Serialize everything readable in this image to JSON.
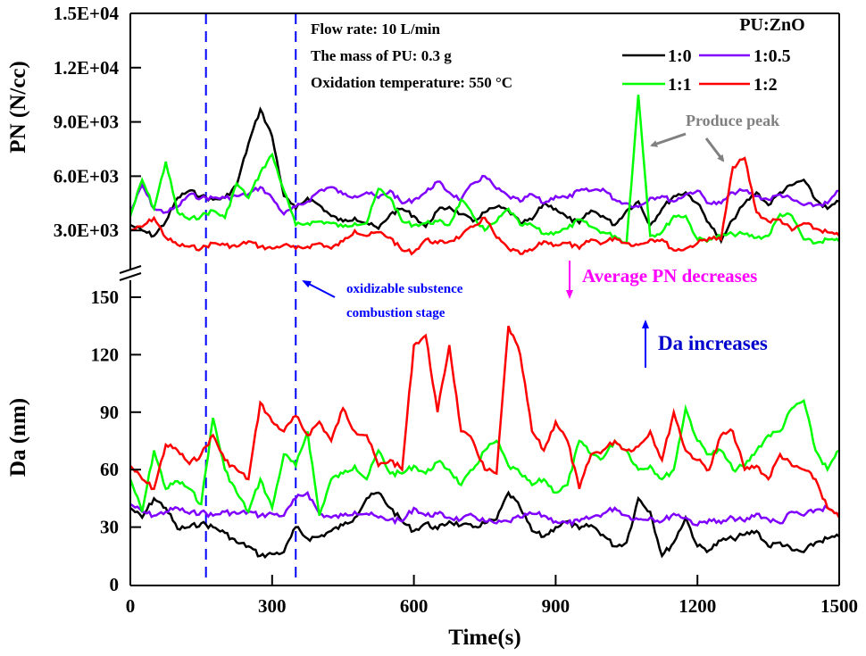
{
  "chart_data": {
    "type": "line",
    "title": "",
    "xlabel": "Time(s)",
    "xlim": [
      0,
      1500
    ],
    "xticks": [
      "0",
      "300",
      "600",
      "900",
      "1200",
      "1500"
    ],
    "xtick_values": [
      0,
      300,
      600,
      900,
      1200,
      1500
    ],
    "panels": [
      {
        "name": "PN",
        "ylabel": "PN (N/cc)",
        "ylim": [
          0,
          15000
        ],
        "yticks": [
          "3.0E+03",
          "6.0E+03",
          "9.0E+03",
          "1.2E+04",
          "1.5E+04"
        ],
        "ytick_values": [
          3000,
          6000,
          9000,
          12000,
          15000
        ]
      },
      {
        "name": "Da",
        "ylabel": "Da (nm)",
        "ylim": [
          0,
          160
        ],
        "yticks": [
          "0",
          "30",
          "60",
          "90",
          "120",
          "150"
        ],
        "ytick_values": [
          0,
          30,
          60,
          90,
          120,
          150
        ]
      }
    ],
    "legend": {
      "title": "PU:ZnO",
      "placement": "top-right"
    },
    "x": [
      0,
      25,
      50,
      75,
      100,
      125,
      150,
      175,
      200,
      225,
      250,
      275,
      300,
      325,
      350,
      375,
      400,
      425,
      450,
      475,
      500,
      525,
      550,
      575,
      600,
      625,
      650,
      675,
      700,
      725,
      750,
      775,
      800,
      825,
      850,
      875,
      900,
      925,
      950,
      975,
      1000,
      1025,
      1050,
      1075,
      1100,
      1125,
      1150,
      1175,
      1200,
      1225,
      1250,
      1275,
      1300,
      1325,
      1350,
      1375,
      1400,
      1425,
      1450,
      1475,
      1500
    ],
    "series": [
      {
        "name": "1:0",
        "color": "#000000",
        "PN": [
          3300,
          3000,
          2700,
          3500,
          4800,
          5200,
          4900,
          4700,
          4800,
          5500,
          7800,
          9700,
          8200,
          4900,
          4200,
          4800,
          4400,
          3800,
          3500,
          3700,
          3400,
          3100,
          3900,
          4200,
          3800,
          3200,
          4100,
          4300,
          3900,
          3500,
          4000,
          4300,
          4100,
          3400,
          3600,
          4500,
          4200,
          3700,
          3400,
          4100,
          3800,
          3300,
          4100,
          4600,
          3300,
          4200,
          4900,
          5100,
          4500,
          3400,
          2400,
          3600,
          4500,
          5100,
          4400,
          5100,
          5500,
          5800,
          4700,
          4200,
          4600
        ],
        "Da": [
          40,
          35,
          45,
          40,
          29,
          30,
          32,
          30,
          27,
          22,
          20,
          15,
          16,
          17,
          30,
          24,
          25,
          28,
          31,
          35,
          45,
          48,
          40,
          33,
          28,
          32,
          29,
          33,
          31,
          30,
          32,
          34,
          48,
          40,
          28,
          25,
          30,
          33,
          29,
          31,
          26,
          20,
          22,
          45,
          38,
          15,
          22,
          35,
          20,
          18,
          23,
          24,
          26,
          28,
          20,
          22,
          18,
          17,
          22,
          24,
          25
        ]
      },
      {
        "name": "1:0.5",
        "color": "#8000ff",
        "PN": [
          4000,
          5500,
          4200,
          4000,
          4300,
          5000,
          4800,
          4800,
          4800,
          4900,
          5000,
          5400,
          4800,
          3900,
          4300,
          4600,
          5200,
          5400,
          5000,
          4900,
          5100,
          4800,
          5200,
          4500,
          4700,
          5100,
          5700,
          5100,
          4700,
          5600,
          6000,
          5300,
          4900,
          4600,
          5000,
          4500,
          4900,
          4800,
          5200,
          5200,
          5300,
          4700,
          4500,
          4300,
          4800,
          4900,
          4600,
          5000,
          5200,
          4500,
          4500,
          5100,
          5200,
          4900,
          4700,
          5000,
          4700,
          4400,
          4400,
          4500,
          5200
        ],
        "Da": [
          42,
          38,
          36,
          38,
          40,
          37,
          38,
          36,
          38,
          37,
          38,
          36,
          37,
          36,
          45,
          48,
          37,
          35,
          36,
          38,
          37,
          35,
          34,
          33,
          40,
          36,
          37,
          35,
          34,
          36,
          33,
          32,
          33,
          35,
          37,
          36,
          33,
          32,
          33,
          35,
          37,
          40,
          36,
          34,
          35,
          33,
          37,
          35,
          31,
          34,
          32,
          35,
          33,
          37,
          34,
          32,
          38,
          36,
          39,
          40,
          35
        ]
      },
      {
        "name": "1:1",
        "color": "#00ff00",
        "PN": [
          3800,
          5800,
          4200,
          6800,
          4000,
          3600,
          3800,
          4100,
          3700,
          5600,
          4800,
          6200,
          7200,
          5200,
          3300,
          3400,
          3500,
          3400,
          3200,
          3400,
          3400,
          5300,
          4800,
          3500,
          3300,
          3400,
          3500,
          3300,
          4700,
          3800,
          3000,
          3500,
          4200,
          3300,
          3300,
          2800,
          2900,
          3100,
          3600,
          3200,
          2900,
          2700,
          2300,
          10500,
          2700,
          2900,
          3800,
          3800,
          2500,
          2500,
          2700,
          2800,
          2800,
          2600,
          2700,
          3900,
          3800,
          2500,
          2300,
          2500,
          2400
        ],
        "Da": [
          55,
          38,
          70,
          50,
          54,
          50,
          42,
          87,
          60,
          48,
          38,
          55,
          40,
          68,
          62,
          80,
          36,
          55,
          58,
          62,
          55,
          70,
          58,
          58,
          62,
          58,
          64,
          60,
          52,
          60,
          70,
          75,
          62,
          58,
          52,
          55,
          48,
          52,
          75,
          68,
          66,
          75,
          70,
          60,
          62,
          55,
          60,
          92,
          75,
          68,
          70,
          60,
          62,
          70,
          78,
          80,
          92,
          96,
          70,
          60,
          70
        ]
      },
      {
        "name": "1:2",
        "color": "#ff0000",
        "PN": [
          3000,
          3200,
          3700,
          2600,
          2200,
          2100,
          2000,
          2300,
          2200,
          2100,
          2400,
          2100,
          2000,
          2200,
          2000,
          2100,
          2300,
          2000,
          2400,
          3000,
          2700,
          2900,
          2600,
          1900,
          1800,
          2500,
          2300,
          2400,
          2700,
          3200,
          3700,
          2600,
          2000,
          1700,
          1900,
          2400,
          2200,
          2300,
          2000,
          2500,
          2300,
          2600,
          2300,
          2200,
          2500,
          2500,
          1900,
          2000,
          2300,
          2600,
          2500,
          6500,
          7000,
          4000,
          3500,
          3600,
          3000,
          3400,
          3100,
          2900,
          2700
        ],
        "Da": [
          62,
          55,
          50,
          73,
          70,
          63,
          68,
          78,
          65,
          60,
          55,
          95,
          85,
          80,
          88,
          78,
          85,
          75,
          92,
          80,
          78,
          62,
          65,
          60,
          125,
          130,
          90,
          125,
          80,
          75,
          60,
          58,
          135,
          120,
          80,
          70,
          85,
          75,
          50,
          68,
          70,
          75,
          70,
          72,
          80,
          65,
          90,
          70,
          65,
          60,
          78,
          80,
          60,
          62,
          55,
          68,
          62,
          60,
          55,
          40,
          35
        ]
      }
    ],
    "annotations": {
      "conditions": [
        "Flow rate: 10 L/min",
        "The mass of PU: 0.3 g",
        "Oxidation temperature: 550 °C"
      ],
      "produce_peak": "Produce peak",
      "stage_line_1": "oxidizable substence",
      "stage_line_2": "combustion stage",
      "stage_bounds": [
        160,
        350
      ],
      "pn_note": "Average PN decreases",
      "da_note": "Da increases"
    },
    "colors": {
      "stage_lines": "#0000ff",
      "peak_annotation": "#808080",
      "pn_note": "#ff00ff",
      "da_note": "#0000cc"
    }
  }
}
